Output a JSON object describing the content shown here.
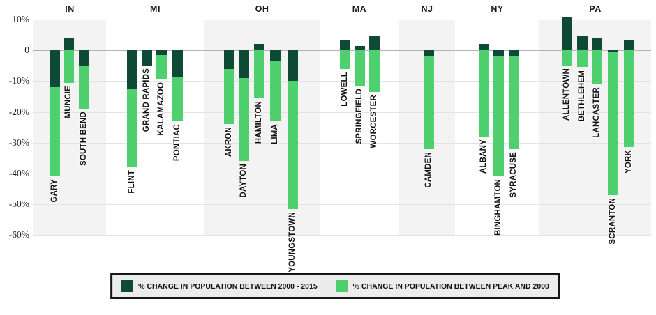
{
  "colors": {
    "dark_green": "#0f4a36",
    "light_green": "#4fd06f",
    "band_gray": "#f3f3f3",
    "gridline": "#e3e3e3",
    "zero_line": "#b4b4b4"
  },
  "legend": {
    "items": [
      {
        "label": "% CHANGE IN POPULATION BETWEEN 2000 - 2015",
        "color": "#0f4a36"
      },
      {
        "label": "% CHANGE IN POPULATION BETWEEN PEAK AND 2000",
        "color": "#4fd06f"
      }
    ]
  },
  "chart_data": {
    "type": "bar",
    "orientation": "vertical",
    "unit": "%",
    "ylim": [
      -60,
      10
    ],
    "grid": "horizontal",
    "legend_position": "bottom",
    "y_ticks": [
      {
        "label": "10%",
        "value": 10
      },
      {
        "label": "0",
        "value": 0
      },
      {
        "label": "-10%",
        "value": -10
      },
      {
        "label": "-20%",
        "value": -20
      },
      {
        "label": "-30%",
        "value": -30
      },
      {
        "label": "-40%",
        "value": -40
      },
      {
        "label": "-50%",
        "value": -50
      },
      {
        "label": "-60%",
        "value": -60
      }
    ],
    "series_names": [
      "% CHANGE IN POPULATION BETWEEN 2000 - 2015",
      "% CHANGE IN POPULATION BETWEEN PEAK AND 2000"
    ],
    "groups": [
      {
        "state": "IN",
        "cities": [
          {
            "name": "GARY",
            "change_2000_2015": -12,
            "change_peak_2000": -41
          },
          {
            "name": "MUNCIE",
            "change_2000_2015": 4,
            "change_peak_2000": -10.5
          },
          {
            "name": "SOUTH BEND",
            "change_2000_2015": -5,
            "change_peak_2000": -19
          }
        ]
      },
      {
        "state": "MI",
        "cities": [
          {
            "name": "FLINT",
            "change_2000_2015": -12.5,
            "change_peak_2000": -38
          },
          {
            "name": "GRAND RAPIDS",
            "change_2000_2015": -5,
            "change_peak_2000": 0
          },
          {
            "name": "KALAMAZOO",
            "change_2000_2015": -1.5,
            "change_peak_2000": -9.5
          },
          {
            "name": "PONTIAC",
            "change_2000_2015": -8.5,
            "change_peak_2000": -23
          }
        ]
      },
      {
        "state": "OH",
        "cities": [
          {
            "name": "AKRON",
            "change_2000_2015": -6,
            "change_peak_2000": -24
          },
          {
            "name": "DAYTON",
            "change_2000_2015": -9,
            "change_peak_2000": -36
          },
          {
            "name": "HAMILTON",
            "change_2000_2015": 2,
            "change_peak_2000": -15.5
          },
          {
            "name": "LIMA",
            "change_2000_2015": -3.5,
            "change_peak_2000": -23
          },
          {
            "name": "YOUNGSTOWN",
            "change_2000_2015": -10,
            "change_peak_2000": -51.5
          }
        ]
      },
      {
        "state": "MA",
        "cities": [
          {
            "name": "LOWELL",
            "change_2000_2015": 3.5,
            "change_peak_2000": -6
          },
          {
            "name": "SPRINGFIELD",
            "change_2000_2015": 1.5,
            "change_peak_2000": -11.5
          },
          {
            "name": "WORCESTER",
            "change_2000_2015": 4.5,
            "change_peak_2000": -13.5
          }
        ]
      },
      {
        "state": "NJ",
        "cities": [
          {
            "name": "CAMDEN",
            "change_2000_2015": -2,
            "change_peak_2000": -32
          }
        ]
      },
      {
        "state": "NY",
        "cities": [
          {
            "name": "ALBANY",
            "change_2000_2015": 2,
            "change_peak_2000": -28
          },
          {
            "name": "BINGHAMTON",
            "change_2000_2015": -2,
            "change_peak_2000": -41
          },
          {
            "name": "SYRACUSE",
            "change_2000_2015": -2,
            "change_peak_2000": -32
          }
        ]
      },
      {
        "state": "PA",
        "cities": [
          {
            "name": "ALLENTOWN",
            "change_2000_2015": 11,
            "change_peak_2000": -5
          },
          {
            "name": "BETHLEHEM",
            "change_2000_2015": 4.5,
            "change_peak_2000": -5.5
          },
          {
            "name": "LANCASTER",
            "change_2000_2015": 4,
            "change_peak_2000": -11
          },
          {
            "name": "SCRANTON",
            "change_2000_2015": -0.5,
            "change_peak_2000": -47
          },
          {
            "name": "YORK",
            "change_2000_2015": 3.5,
            "change_peak_2000": -31.5
          }
        ]
      }
    ]
  }
}
